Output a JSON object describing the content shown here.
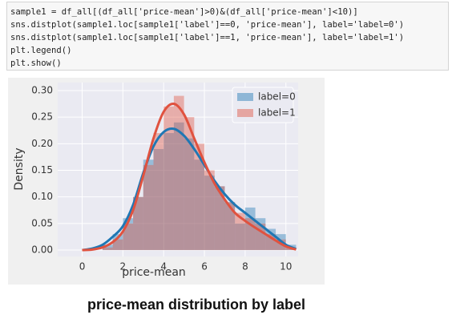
{
  "code": [
    "sample1 = df_all[(df_all['price-mean']>0)&(df_all['price-mean']<10)]",
    "sns.distplot(sample1.loc[sample1['label']==0, 'price-mean'], label='label=0')",
    "sns.distplot(sample1.loc[sample1['label']==1, 'price-mean'], label='label=1')",
    "plt.legend()",
    "plt.show()"
  ],
  "caption": "price-mean distribution by label",
  "chart_data": {
    "type": "histogram",
    "xlabel": "price-mean",
    "ylabel": "Density",
    "xlim": [
      -1.2,
      10.6
    ],
    "ylim": [
      -0.012,
      0.315
    ],
    "xticks": [
      0,
      2,
      4,
      6,
      8,
      10
    ],
    "yticks": [
      {
        "value": 0,
        "label": "0.00"
      },
      0.05,
      {
        "value": 0.1,
        "label": "0.10"
      },
      0.15,
      {
        "value": 0.2,
        "label": "0.20"
      },
      0.25,
      {
        "value": 0.3,
        "label": "0.30"
      }
    ],
    "grid": true,
    "legend": "upper right",
    "bins": [
      1,
      1.5,
      2,
      2.5,
      3,
      3.5,
      4,
      4.5,
      5,
      5.5,
      6,
      6.5,
      7,
      7.5,
      8,
      8.5,
      9,
      9.5,
      10,
      10.5
    ],
    "kde_x": [
      0,
      0.5,
      1,
      1.5,
      2,
      2.5,
      3,
      3.5,
      4,
      4.5,
      5,
      5.5,
      6,
      6.5,
      7,
      7.5,
      8,
      8.5,
      9,
      9.5,
      10,
      10.5
    ],
    "series": [
      {
        "name": "label=0",
        "color": "#1f77b4",
        "values": [
          0.01,
          0.03,
          0.06,
          0.1,
          0.17,
          0.19,
          0.22,
          0.24,
          0.21,
          0.17,
          0.14,
          0.12,
          0.09,
          0.05,
          0.08,
          0.06,
          0.04,
          0.03,
          0.01
        ],
        "kde": [
          0,
          0.003,
          0.01,
          0.025,
          0.045,
          0.085,
          0.145,
          0.195,
          0.222,
          0.228,
          0.215,
          0.19,
          0.16,
          0.13,
          0.105,
          0.085,
          0.07,
          0.055,
          0.04,
          0.025,
          0.01,
          0.002
        ]
      },
      {
        "name": "label=1",
        "color": "#e0523f",
        "values": [
          0.005,
          0.02,
          0.05,
          0.1,
          0.16,
          0.22,
          0.27,
          0.29,
          0.25,
          0.2,
          0.15,
          0.12,
          0.09,
          0.07,
          0.06,
          0.05,
          0.03,
          0.02,
          0.005
        ],
        "kde": [
          0,
          0.001,
          0.005,
          0.015,
          0.035,
          0.075,
          0.14,
          0.21,
          0.26,
          0.275,
          0.255,
          0.21,
          0.165,
          0.125,
          0.095,
          0.07,
          0.055,
          0.042,
          0.03,
          0.018,
          0.007,
          0.001
        ]
      }
    ]
  }
}
